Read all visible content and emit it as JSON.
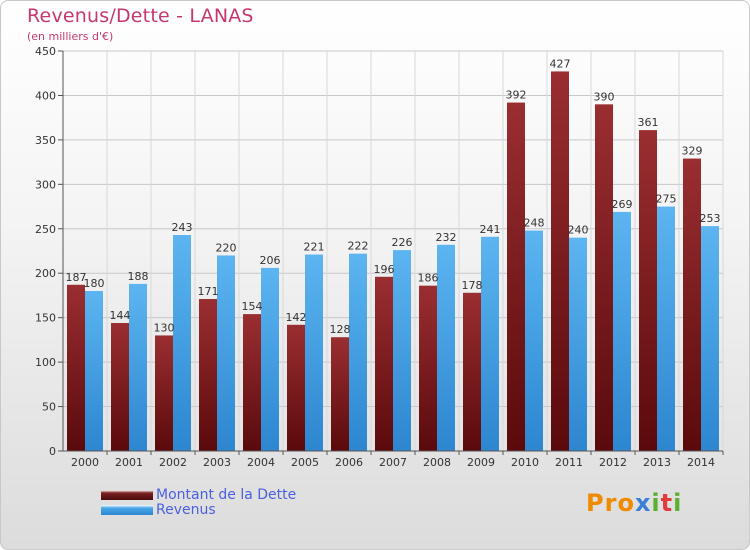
{
  "chart_data": {
    "type": "bar",
    "title": "Revenus/Dette - LANAS",
    "subtitle": "(en milliers d'€)",
    "categories": [
      "2000",
      "2001",
      "2002",
      "2003",
      "2004",
      "2005",
      "2006",
      "2007",
      "2008",
      "2009",
      "2010",
      "2011",
      "2012",
      "2013",
      "2014"
    ],
    "series": [
      {
        "name": "Montant de la Dette",
        "color": "#7a1f22",
        "values": [
          187,
          144,
          130,
          171,
          154,
          142,
          128,
          196,
          186,
          178,
          392,
          427,
          390,
          361,
          329
        ]
      },
      {
        "name": "Revenus",
        "color": "#4aa6e6",
        "values": [
          180,
          188,
          243,
          220,
          206,
          221,
          222,
          226,
          232,
          241,
          248,
          240,
          269,
          275,
          253
        ]
      }
    ],
    "yticks": [
      0,
      50,
      100,
      150,
      200,
      250,
      300,
      350,
      400,
      450
    ],
    "ylim": [
      0,
      450
    ],
    "grid": true
  },
  "logo": {
    "text": "Proxiti",
    "letter_colors": [
      "#f08a00",
      "#f08a00",
      "#f08a00",
      "#3b7fd8",
      "#5bb030",
      "#e03a3a",
      "#5bb030"
    ]
  }
}
